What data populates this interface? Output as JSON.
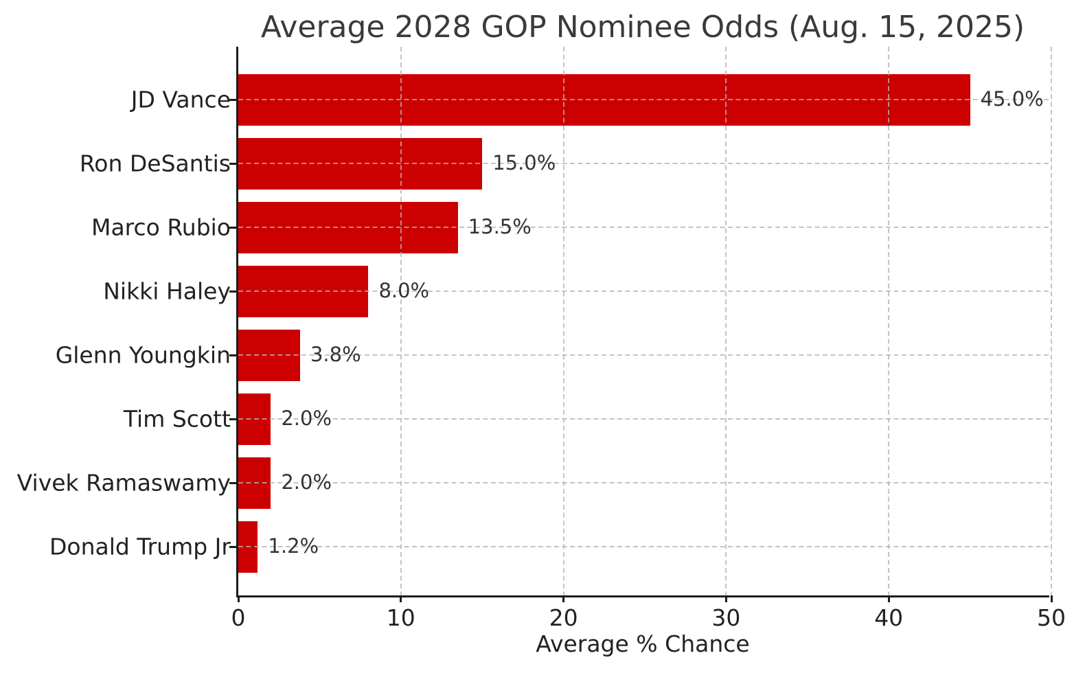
{
  "chart_data": {
    "type": "bar",
    "orientation": "horizontal",
    "title": "Average 2028 GOP Nominee Odds (Aug. 15, 2025)",
    "xlabel": "Average % Chance",
    "ylabel": "",
    "xlim": [
      0,
      50
    ],
    "x_ticks": [
      0,
      10,
      20,
      30,
      40,
      50
    ],
    "grid": "dashed-both-axes-over-bars",
    "legend": "none",
    "bar_color": "#cc0000",
    "axis_color": "#1c1c1c",
    "grid_color": "#c9c9c9",
    "categories": [
      "JD Vance",
      "Ron DeSantis",
      "Marco Rubio",
      "Nikki Haley",
      "Glenn Youngkin",
      "Tim Scott",
      "Vivek Ramaswamy",
      "Donald Trump Jr"
    ],
    "values": [
      45.0,
      15.0,
      13.5,
      8.0,
      3.8,
      2.0,
      2.0,
      1.2
    ],
    "value_labels": [
      "45.0%",
      "15.0%",
      "13.5%",
      "8.0%",
      "3.8%",
      "2.0%",
      "2.0%",
      "1.2%"
    ]
  }
}
